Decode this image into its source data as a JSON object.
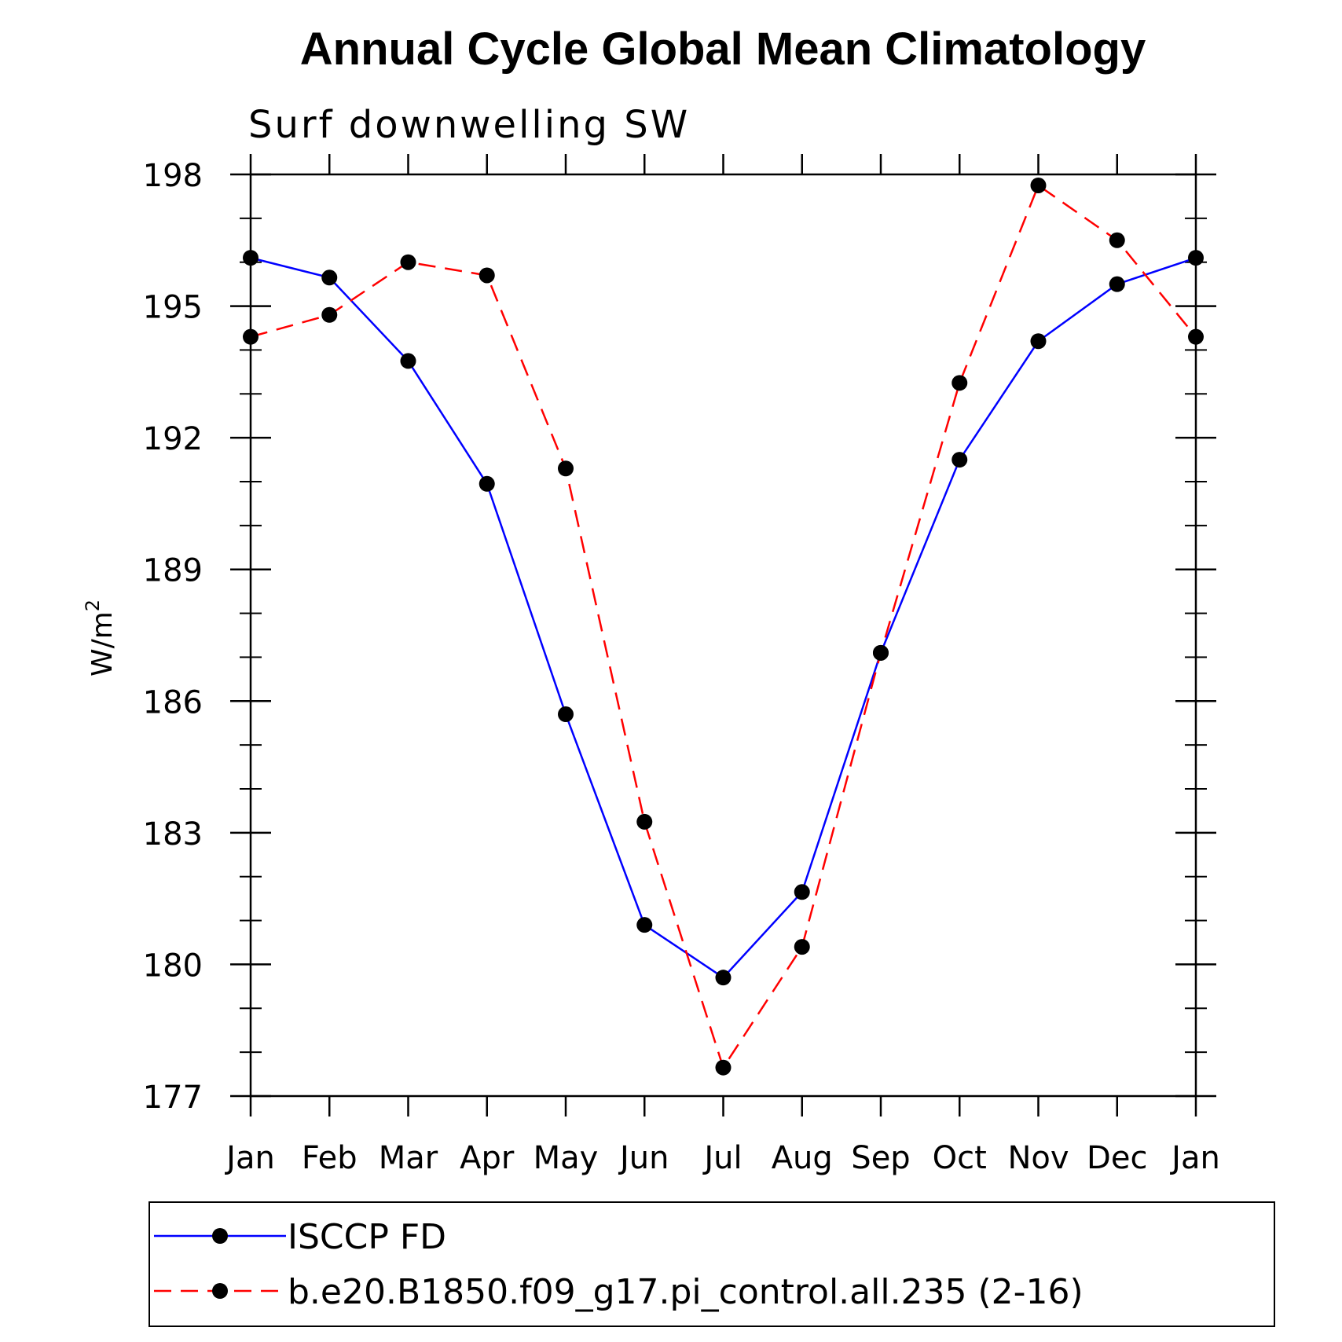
{
  "chart_data": {
    "type": "line",
    "title": "Annual Cycle Global Mean Climatology",
    "subtitle": "Surf downwelling SW",
    "ylabel": "W/m",
    "ylabel_sup": "2",
    "xlabel": "",
    "categories": [
      "Jan",
      "Feb",
      "Mar",
      "Apr",
      "May",
      "Jun",
      "Jul",
      "Aug",
      "Sep",
      "Oct",
      "Nov",
      "Dec",
      "Jan"
    ],
    "ylim": [
      177,
      198
    ],
    "yticks": [
      177,
      180,
      183,
      186,
      189,
      192,
      195,
      198
    ],
    "ytick_labels": [
      "177",
      "180",
      "183",
      "186",
      "189",
      "192",
      "195",
      "198"
    ],
    "legend_position": "bottom",
    "series": [
      {
        "name": "ISCCP FD",
        "color": "#0000ff",
        "dash": "solid",
        "values": [
          196.1,
          195.65,
          193.75,
          190.95,
          185.7,
          180.9,
          179.7,
          181.65,
          187.1,
          191.5,
          194.2,
          195.5,
          196.1
        ]
      },
      {
        "name": "b.e20.B1850.f09_g17.pi_control.all.235 (2-16)",
        "color": "#ff0000",
        "dash": "dashed",
        "values": [
          194.3,
          194.8,
          196.0,
          195.7,
          191.3,
          183.25,
          177.65,
          180.4,
          187.1,
          193.25,
          197.75,
          196.5,
          194.3
        ]
      }
    ]
  }
}
